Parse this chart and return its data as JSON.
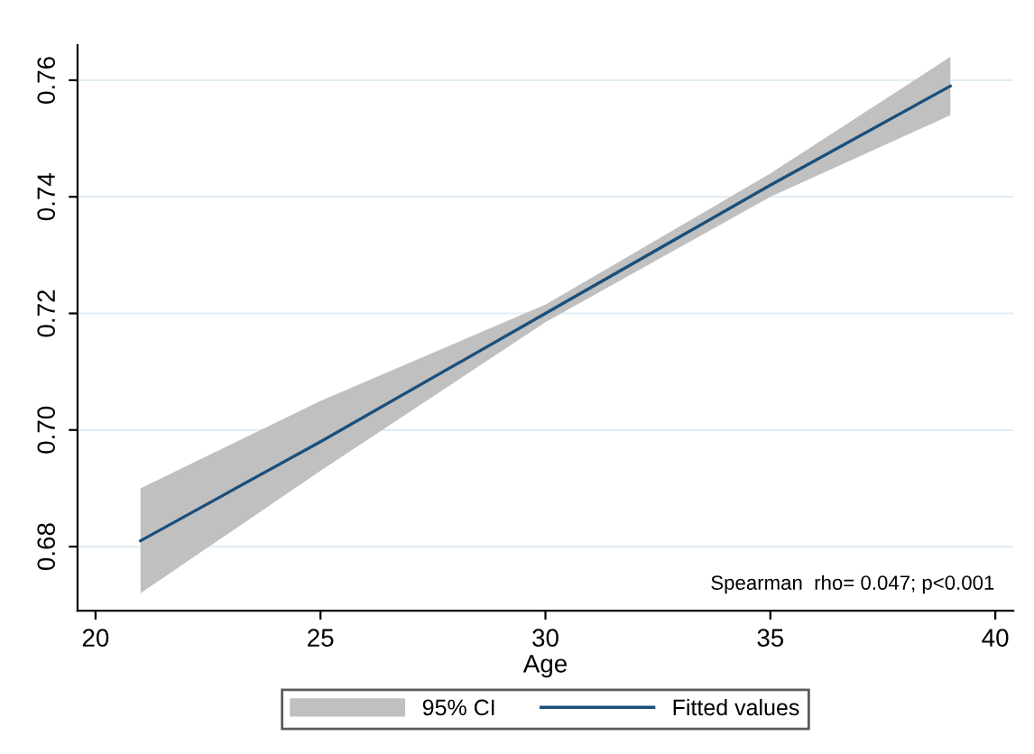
{
  "chart_data": {
    "type": "line",
    "xlabel": "Age",
    "x": [
      21,
      25,
      30,
      35,
      39
    ],
    "series": [
      {
        "name": "Fitted values",
        "color": "#1a4f7a",
        "values": [
          0.681,
          0.698,
          0.72,
          0.742,
          0.759
        ],
        "lower": [
          0.672,
          0.693,
          0.7185,
          0.74,
          0.754
        ],
        "upper": [
          0.69,
          0.705,
          0.7215,
          0.744,
          0.764
        ]
      }
    ],
    "xlim": [
      19.6,
      40.4
    ],
    "xticks": [
      20,
      25,
      30,
      35,
      40
    ],
    "ylim": [
      0.669,
      0.766
    ],
    "yticks": [
      {
        "value": 0.68,
        "label": "0.68"
      },
      {
        "value": 0.7,
        "label": "0.70"
      },
      {
        "value": 0.72,
        "label": "0.72"
      },
      {
        "value": 0.74,
        "label": "0.74"
      },
      {
        "value": 0.76,
        "label": "0.76"
      }
    ],
    "grid": "y",
    "legend": "bottom",
    "annotations": [
      "95% CI",
      "Spearman  rho= 0.047; p<0.001"
    ]
  }
}
